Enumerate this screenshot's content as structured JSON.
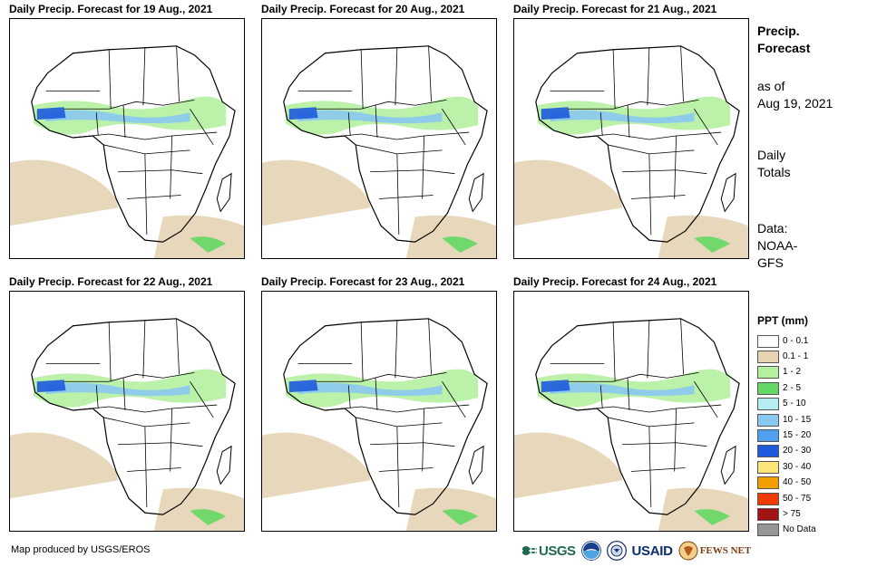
{
  "panels": [
    {
      "title": "Daily Precip. Forecast for 19 Aug., 2021"
    },
    {
      "title": "Daily Precip. Forecast for 20 Aug., 2021"
    },
    {
      "title": "Daily Precip. Forecast for 21 Aug., 2021"
    },
    {
      "title": "Daily Precip. Forecast for 22 Aug., 2021"
    },
    {
      "title": "Daily Precip. Forecast for 23 Aug., 2021"
    },
    {
      "title": "Daily Precip. Forecast for 24 Aug., 2021"
    }
  ],
  "sidebar": {
    "title_line1": "Precip.",
    "title_line2": "Forecast",
    "asof_line1": "as of",
    "asof_line2": "Aug 19, 2021",
    "daily_line1": "Daily",
    "daily_line2": "Totals",
    "data_line1": "Data:",
    "data_line2": "NOAA-",
    "data_line3": "GFS"
  },
  "legend": {
    "title": "PPT (mm)",
    "items": [
      {
        "label": "0 - 0.1",
        "color": "#ffffff"
      },
      {
        "label": "0.1 - 1",
        "color": "#e6d4b4"
      },
      {
        "label": "1 - 2",
        "color": "#b4f0a0"
      },
      {
        "label": "2 - 5",
        "color": "#64d864"
      },
      {
        "label": "5 - 10",
        "color": "#b4eef0"
      },
      {
        "label": "10 - 15",
        "color": "#8ac8f0"
      },
      {
        "label": "15 - 20",
        "color": "#50a0f0"
      },
      {
        "label": "20 - 30",
        "color": "#1e5adc"
      },
      {
        "label": "30 - 40",
        "color": "#fae678"
      },
      {
        "label": "40 - 50",
        "color": "#f0a000"
      },
      {
        "label": "50 - 75",
        "color": "#f03c00"
      },
      {
        "label": "> 75",
        "color": "#a01414"
      },
      {
        "label": "No Data",
        "color": "#969696"
      }
    ]
  },
  "footer": {
    "credit": "Map produced by USGS/EROS",
    "logos": {
      "usgs": "USGS",
      "usaid": "USAID",
      "fews": "FEWS NET"
    }
  }
}
